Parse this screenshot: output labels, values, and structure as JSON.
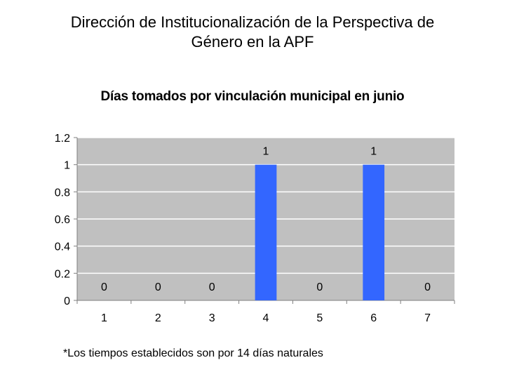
{
  "slide": {
    "title_line1": "Dirección de Institucionalización de la Perspectiva de",
    "title_line2": "Género en la APF",
    "footnote": "*Los tiempos establecidos son por 14 días naturales"
  },
  "chart_data": {
    "type": "bar",
    "title": "Días tomados por vinculación municipal en junio",
    "categories": [
      "1",
      "2",
      "3",
      "4",
      "5",
      "6",
      "7"
    ],
    "values": [
      0,
      0,
      0,
      1,
      0,
      1,
      0
    ],
    "data_labels": [
      "0",
      "0",
      "0",
      "1",
      "0",
      "1",
      "0"
    ],
    "y_ticks": [
      "0",
      "0.2",
      "0.4",
      "0.6",
      "0.8",
      "1",
      "1.2"
    ],
    "ylim": [
      0,
      1.2
    ],
    "xlabel": "",
    "ylabel": "",
    "grid": true,
    "legend": "none",
    "colors": {
      "bar": "#3366ff",
      "plot_background": "#c0c0c0",
      "gridline": "#ffffff",
      "axis": "#7f7f7f"
    }
  }
}
